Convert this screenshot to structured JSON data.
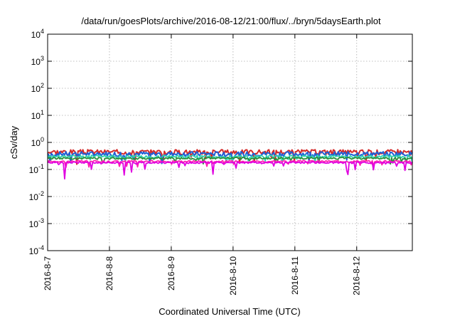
{
  "chart_data": {
    "type": "line",
    "title": "/data/run/goesPlots/archive/2016-08-12/21:00/flux/../bryn/5daysEarth.plot",
    "xlabel": "Coordinated Universal Time (UTC)",
    "ylabel": "cSv/day",
    "yscale": "log",
    "ylim": [
      0.0001,
      10000
    ],
    "y_ticks": [
      {
        "base": "10",
        "exp": "-4"
      },
      {
        "base": "10",
        "exp": "-3"
      },
      {
        "base": "10",
        "exp": "-2"
      },
      {
        "base": "10",
        "exp": "-1"
      },
      {
        "base": "10",
        "exp": "0"
      },
      {
        "base": "10",
        "exp": "1"
      },
      {
        "base": "10",
        "exp": "2"
      },
      {
        "base": "10",
        "exp": "3"
      },
      {
        "base": "10",
        "exp": "4"
      }
    ],
    "x_ticks": [
      "2016-8-7",
      "2016-8-8",
      "2016-8-9",
      "2016-8-10",
      "2016-8-11",
      "2016-8-12"
    ],
    "xlim_days": [
      0,
      5.9
    ],
    "grid": true,
    "series": [
      {
        "color": "#d42a2a",
        "base": 0.45,
        "spread": 0.3,
        "dip": 0.6,
        "seed": 3
      },
      {
        "color": "#1f5fd6",
        "base": 0.38,
        "spread": 0.28,
        "dip": 0.55,
        "seed": 7
      },
      {
        "color": "#2fd3b0",
        "base": 0.3,
        "spread": 0.18,
        "dip": 0.45,
        "seed": 11
      },
      {
        "color": "#2a8f3a",
        "base": 0.26,
        "spread": 0.12,
        "dip": 0.4,
        "seed": 13
      },
      {
        "color": "#ff1fb0",
        "base": 0.2,
        "spread": 0.1,
        "dip": 0.4,
        "seed": 17
      },
      {
        "color": "#e000e0",
        "base": 0.18,
        "spread": 0.1,
        "dip": 0.65,
        "seed": 19
      }
    ]
  }
}
